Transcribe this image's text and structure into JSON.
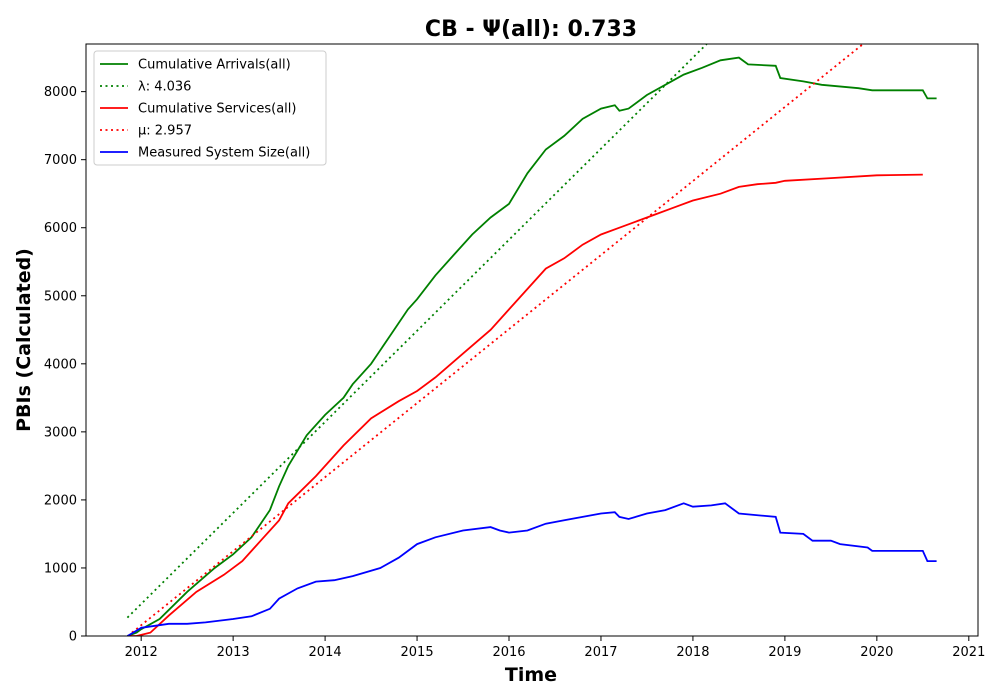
{
  "chart_data": {
    "type": "line",
    "title": "CB -  Ψ(all): 0.733",
    "xlabel": "Time",
    "ylabel": "PBIs (Calculated)",
    "xlim": [
      2011.4,
      2021.1
    ],
    "ylim": [
      0,
      8700
    ],
    "x_ticks": [
      2012,
      2013,
      2014,
      2015,
      2016,
      2017,
      2018,
      2019,
      2020,
      2021
    ],
    "y_ticks": [
      0,
      1000,
      2000,
      3000,
      4000,
      5000,
      6000,
      7000,
      8000
    ],
    "grid": false,
    "legend_position": "upper-left",
    "series": [
      {
        "name": "Cumulative Arrivals(all)",
        "style": "solid",
        "color": "#008000",
        "x": [
          2011.85,
          2011.95,
          2012.0,
          2012.2,
          2012.5,
          2012.8,
          2013.0,
          2013.2,
          2013.4,
          2013.5,
          2013.6,
          2013.8,
          2014.0,
          2014.2,
          2014.3,
          2014.5,
          2014.7,
          2014.9,
          2015.0,
          2015.2,
          2015.4,
          2015.6,
          2015.8,
          2016.0,
          2016.2,
          2016.4,
          2016.6,
          2016.8,
          2017.0,
          2017.15,
          2017.2,
          2017.3,
          2017.5,
          2017.7,
          2017.9,
          2018.1,
          2018.3,
          2018.5,
          2018.6,
          2018.9,
          2018.95,
          2019.2,
          2019.4,
          2019.8,
          2019.95,
          2020.5,
          2020.55,
          2020.65
        ],
        "values": [
          0,
          50,
          100,
          250,
          650,
          1000,
          1200,
          1450,
          1850,
          2200,
          2500,
          2950,
          3250,
          3500,
          3700,
          4000,
          4400,
          4800,
          4950,
          5300,
          5600,
          5900,
          6150,
          6350,
          6800,
          7150,
          7350,
          7600,
          7750,
          7800,
          7720,
          7750,
          7950,
          8100,
          8250,
          8350,
          8460,
          8500,
          8400,
          8380,
          8200,
          8150,
          8100,
          8050,
          8020,
          8020,
          7900,
          7900
        ]
      },
      {
        "name": "λ: 4.036",
        "style": "dotted",
        "color": "#008000",
        "x": [
          2011.85,
          2018.15
        ],
        "values": [
          270,
          8700
        ]
      },
      {
        "name": "Cumulative Services(all)",
        "style": "solid",
        "color": "#ff0000",
        "x": [
          2011.85,
          2011.95,
          2012.1,
          2012.3,
          2012.6,
          2012.9,
          2013.1,
          2013.3,
          2013.5,
          2013.6,
          2013.9,
          2014.2,
          2014.5,
          2014.8,
          2015.0,
          2015.2,
          2015.5,
          2015.8,
          2016.0,
          2016.2,
          2016.4,
          2016.6,
          2016.8,
          2017.0,
          2017.2,
          2017.4,
          2017.6,
          2017.8,
          2018.0,
          2018.3,
          2018.5,
          2018.7,
          2018.9,
          2019.0,
          2019.5,
          2020.0,
          2020.5
        ],
        "values": [
          0,
          0,
          50,
          300,
          650,
          900,
          1100,
          1400,
          1700,
          1950,
          2350,
          2800,
          3200,
          3450,
          3600,
          3800,
          4150,
          4500,
          4800,
          5100,
          5400,
          5550,
          5750,
          5900,
          6000,
          6100,
          6200,
          6300,
          6400,
          6500,
          6600,
          6640,
          6660,
          6690,
          6730,
          6770,
          6780
        ]
      },
      {
        "name": "μ: 2.957",
        "style": "dotted",
        "color": "#ff0000",
        "x": [
          2011.9,
          2019.85
        ],
        "values": [
          50,
          8700
        ]
      },
      {
        "name": "Measured System Size(all)",
        "style": "solid",
        "color": "#0000ff",
        "x": [
          2011.85,
          2011.95,
          2012.0,
          2012.3,
          2012.5,
          2012.7,
          2013.0,
          2013.2,
          2013.4,
          2013.5,
          2013.7,
          2013.9,
          2014.1,
          2014.3,
          2014.6,
          2014.8,
          2015.0,
          2015.2,
          2015.5,
          2015.8,
          2015.9,
          2016.0,
          2016.2,
          2016.4,
          2016.6,
          2016.8,
          2017.0,
          2017.15,
          2017.2,
          2017.3,
          2017.5,
          2017.7,
          2017.9,
          2018.0,
          2018.2,
          2018.35,
          2018.5,
          2018.9,
          2018.95,
          2019.2,
          2019.3,
          2019.5,
          2019.6,
          2019.9,
          2019.95,
          2020.5,
          2020.55,
          2020.65
        ],
        "values": [
          0,
          80,
          120,
          180,
          180,
          200,
          250,
          290,
          400,
          550,
          700,
          800,
          820,
          880,
          1000,
          1150,
          1350,
          1450,
          1550,
          1600,
          1550,
          1520,
          1550,
          1650,
          1700,
          1750,
          1800,
          1820,
          1750,
          1720,
          1800,
          1850,
          1950,
          1900,
          1920,
          1950,
          1800,
          1750,
          1520,
          1500,
          1400,
          1400,
          1350,
          1300,
          1250,
          1250,
          1100,
          1100
        ]
      }
    ]
  }
}
